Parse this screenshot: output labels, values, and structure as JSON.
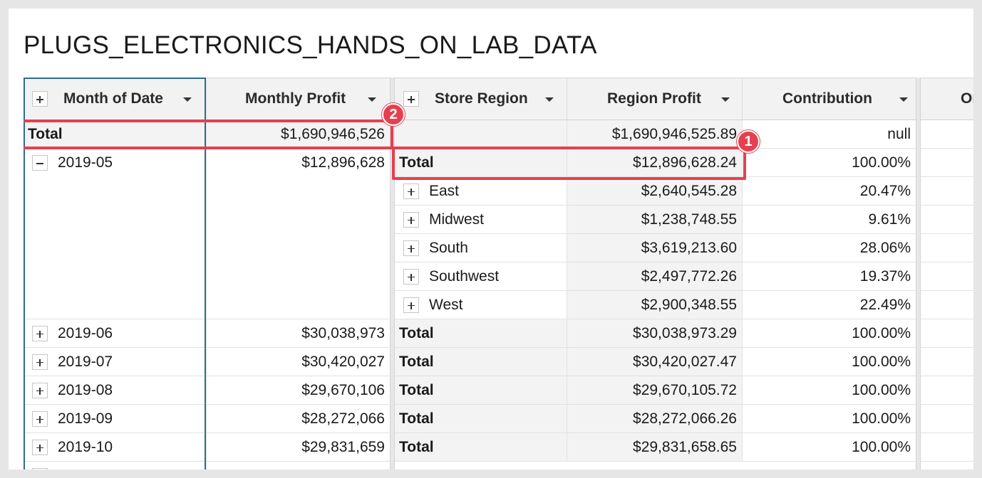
{
  "title": "PLUGS_ELECTRONICS_HANDS_ON_LAB_DATA",
  "headers": {
    "month_of_date": "Month of Date",
    "monthly_profit": "Monthly Profit",
    "store_region": "Store Region",
    "region_profit": "Region Profit",
    "contribution": "Contribution",
    "next_partial": "Or"
  },
  "grand_total": {
    "label": "Total",
    "monthly_profit": "$1,690,946,526",
    "region_profit": "$1,690,946,525.89",
    "contribution": "null"
  },
  "months": [
    {
      "month": "2019-05",
      "profit": "$12,896,628"
    },
    {
      "month": "2019-06",
      "profit": "$30,038,973"
    },
    {
      "month": "2019-07",
      "profit": "$30,420,027"
    },
    {
      "month": "2019-08",
      "profit": "$29,670,106"
    },
    {
      "month": "2019-09",
      "profit": "$28,272,066"
    },
    {
      "month": "2019-10",
      "profit": "$29,831,659"
    }
  ],
  "region_rows": [
    {
      "label": "Total",
      "profit": "$12,896,628.24",
      "contribution": "100.00%"
    },
    {
      "label": "East",
      "profit": "$2,640,545.28",
      "contribution": "20.47%"
    },
    {
      "label": "Midwest",
      "profit": "$1,238,748.55",
      "contribution": "9.61%"
    },
    {
      "label": "South",
      "profit": "$3,619,213.60",
      "contribution": "28.06%"
    },
    {
      "label": "Southwest",
      "profit": "$2,497,772.26",
      "contribution": "19.37%"
    },
    {
      "label": "West",
      "profit": "$2,900,348.55",
      "contribution": "22.49%"
    },
    {
      "label": "Total",
      "profit": "$30,038,973.29",
      "contribution": "100.00%"
    },
    {
      "label": "Total",
      "profit": "$30,420,027.47",
      "contribution": "100.00%"
    },
    {
      "label": "Total",
      "profit": "$29,670,105.72",
      "contribution": "100.00%"
    },
    {
      "label": "Total",
      "profit": "$28,272,066.26",
      "contribution": "100.00%"
    },
    {
      "label": "Total",
      "profit": "$29,831,658.65",
      "contribution": "100.00%"
    }
  ],
  "callouts": {
    "one": "1",
    "two": "2"
  },
  "colors": {
    "accent": "#e5404f",
    "selected_column_border": "#2e6e8e"
  }
}
